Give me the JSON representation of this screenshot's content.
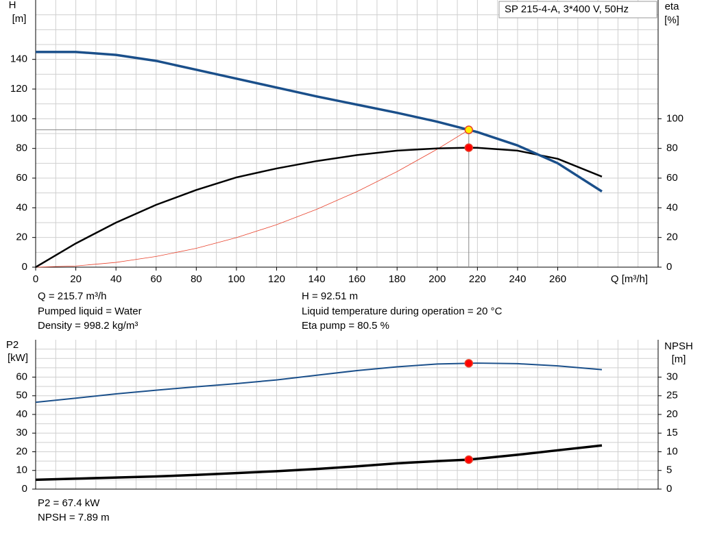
{
  "chart_data": [
    {
      "type": "line",
      "title": "SP 215-4-A, 3*400 V, 50Hz",
      "xlabel": "Q [m³/h]",
      "ylabel": [
        "H",
        "[m]"
      ],
      "y2label": [
        "eta",
        "[%]"
      ],
      "xlim": [
        0,
        310
      ],
      "xticks": [
        0,
        20,
        40,
        60,
        80,
        100,
        120,
        140,
        160,
        180,
        200,
        220,
        240,
        260
      ],
      "xgrid": [
        0,
        10,
        20,
        30,
        40,
        50,
        60,
        70,
        80,
        90,
        100,
        110,
        120,
        130,
        140,
        150,
        160,
        170,
        180,
        190,
        200,
        210,
        220,
        230,
        240,
        250,
        260,
        270,
        280,
        290,
        300
      ],
      "ylim": [
        0,
        180
      ],
      "yticks": [
        0,
        20,
        40,
        60,
        80,
        100,
        120,
        140
      ],
      "ygrid": [
        0,
        10,
        20,
        30,
        40,
        50,
        60,
        70,
        80,
        90,
        100,
        110,
        120,
        130,
        140,
        150,
        160,
        170
      ],
      "y2lim": [
        0,
        180
      ],
      "y2ticks": [
        0,
        20,
        40,
        60,
        80,
        100
      ],
      "grid": true,
      "series": [
        {
          "color": "#e8402a",
          "width": 0.8,
          "x": [
            0,
            20,
            40,
            60,
            80,
            100,
            120,
            140,
            160,
            180,
            200,
            215.7
          ],
          "values": [
            0,
            0.8,
            3.2,
            7.2,
            12.7,
            19.9,
            28.6,
            39.0,
            50.9,
            64.4,
            79.5,
            92.51
          ]
        },
        {
          "color": "#000000",
          "width": 2.5,
          "axis": "y2",
          "x": [
            0,
            20,
            40,
            60,
            80,
            100,
            120,
            140,
            160,
            180,
            200,
            215.7,
            220,
            240,
            260,
            282
          ],
          "values": [
            0,
            16,
            30,
            42,
            52,
            60.5,
            66.5,
            71.5,
            75.5,
            78.5,
            80,
            80.5,
            80.4,
            78.5,
            73,
            61
          ]
        },
        {
          "color": "#1a4f8a",
          "width": 3.5,
          "x": [
            0,
            20,
            40,
            60,
            80,
            100,
            120,
            140,
            160,
            180,
            200,
            215.7,
            220,
            240,
            260,
            282
          ],
          "values": [
            145,
            145,
            143,
            139,
            133,
            127,
            121,
            115,
            109.5,
            104,
            98,
            92.51,
            91,
            82,
            70,
            51
          ]
        }
      ],
      "points": [
        {
          "x": 215.7,
          "y": 80.5,
          "axis": "y2",
          "color": "#ff0000"
        },
        {
          "x": 215.7,
          "y": 92.51,
          "color": "#ffee00"
        }
      ],
      "info": [
        [
          "Q = 215.7 m³/h",
          "Pumped liquid = Water",
          "Density = 998.2 kg/m³"
        ],
        [
          "H = 92.51 m",
          "Liquid temperature during operation = 20 °C",
          "Eta pump = 80.5 %"
        ]
      ]
    },
    {
      "type": "line",
      "ylabel": [
        "P2",
        "[kW]"
      ],
      "y2label": [
        "NPSH",
        "[m]"
      ],
      "xlim": [
        0,
        310
      ],
      "xgrid": [
        0,
        10,
        20,
        30,
        40,
        50,
        60,
        70,
        80,
        90,
        100,
        110,
        120,
        130,
        140,
        150,
        160,
        170,
        180,
        190,
        200,
        210,
        220,
        230,
        240,
        250,
        260,
        270,
        280,
        290,
        300
      ],
      "ylim": [
        0,
        80
      ],
      "yticks": [
        0,
        10,
        20,
        30,
        40,
        50,
        60
      ],
      "ygrid": [
        0,
        5,
        10,
        15,
        20,
        25,
        30,
        35,
        40,
        45,
        50,
        55,
        60,
        65,
        70,
        75
      ],
      "y2lim": [
        0,
        40
      ],
      "y2ticks": [
        0,
        5,
        10,
        15,
        20,
        25,
        30
      ],
      "grid": true,
      "series": [
        {
          "color": "#1a4f8a",
          "width": 2,
          "x": [
            0,
            20,
            40,
            60,
            80,
            100,
            120,
            140,
            160,
            180,
            200,
            215.7,
            220,
            240,
            260,
            282
          ],
          "values": [
            46.5,
            48.7,
            51,
            53,
            54.8,
            56.5,
            58.5,
            61,
            63.5,
            65.5,
            67,
            67.4,
            67.5,
            67.2,
            66,
            64
          ]
        },
        {
          "color": "#000000",
          "width": 3.5,
          "axis": "y2",
          "x": [
            0,
            20,
            40,
            60,
            80,
            100,
            120,
            140,
            160,
            180,
            200,
            215.7,
            240,
            260,
            282
          ],
          "values": [
            2.5,
            2.8,
            3.1,
            3.4,
            3.8,
            4.3,
            4.8,
            5.4,
            6.1,
            6.9,
            7.5,
            7.89,
            9.2,
            10.4,
            11.7
          ]
        }
      ],
      "points": [
        {
          "x": 215.7,
          "y": 67.4,
          "color": "#ff0000"
        },
        {
          "x": 215.7,
          "y": 7.89,
          "axis": "y2",
          "color": "#ff0000"
        }
      ],
      "info": [
        [
          "P2 = 67.4 kW",
          "NPSH = 7.89 m"
        ]
      ]
    }
  ]
}
